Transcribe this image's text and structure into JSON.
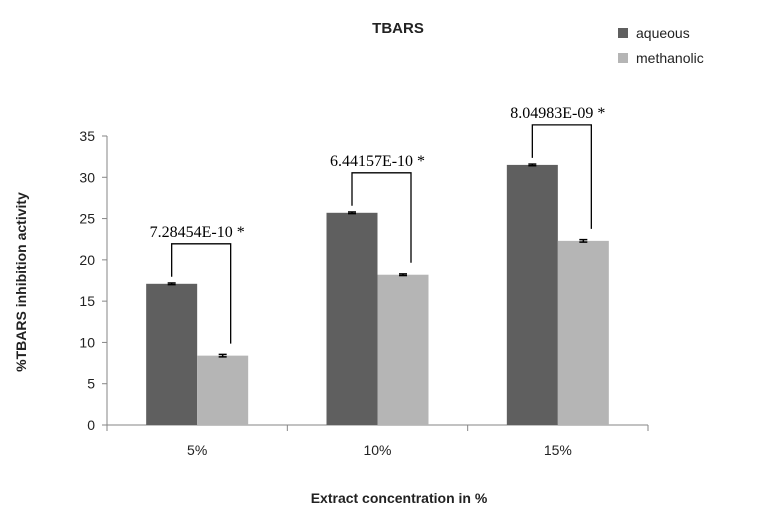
{
  "chart_data": {
    "type": "bar",
    "title": "TBARS",
    "xlabel": "Extract concentration in %",
    "ylabel": "%TBARS inhibition activity",
    "categories": [
      "5%",
      "10%",
      "15%"
    ],
    "series": [
      {
        "name": "aqueous",
        "values": [
          17.1,
          25.7,
          31.5
        ],
        "errors": [
          0.1,
          0.1,
          0.1
        ],
        "color": "#5f5f5f"
      },
      {
        "name": "methanolic",
        "values": [
          8.4,
          18.2,
          22.3
        ],
        "errors": [
          0.15,
          0.1,
          0.15
        ],
        "color": "#b5b5b5"
      }
    ],
    "ylim": [
      0,
      35
    ],
    "yticks": [
      "0",
      "5",
      "10",
      "15",
      "20",
      "25",
      "30",
      "35"
    ],
    "grid": false,
    "legend_position": "top-right",
    "annotations": [
      {
        "category": "5%",
        "text": "7.28454E-10 *"
      },
      {
        "category": "10%",
        "text": "6.44157E-10 *"
      },
      {
        "category": "15%",
        "text": "8.04983E-09 *"
      }
    ]
  }
}
